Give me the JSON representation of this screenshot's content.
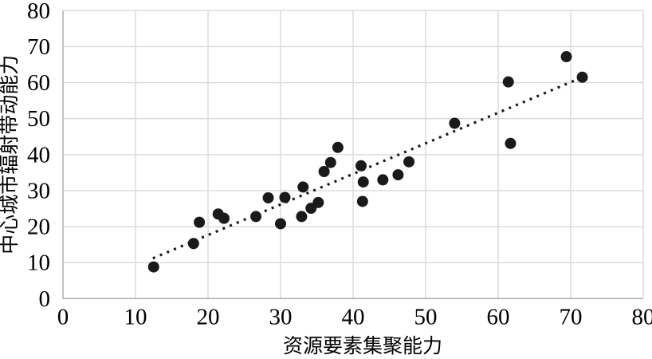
{
  "page": {
    "background_color": "#ffffff"
  },
  "chart_data": {
    "type": "scatter",
    "xlabel": "资源要素集聚能力",
    "ylabel": "中心城市辐射带动能力",
    "xlim": [
      0,
      80
    ],
    "ylim": [
      0,
      80
    ],
    "xticks": [
      0,
      10,
      20,
      30,
      40,
      50,
      60,
      70,
      80
    ],
    "yticks": [
      0,
      10,
      20,
      30,
      40,
      50,
      60,
      70,
      80
    ],
    "grid": true,
    "legend": "none",
    "gridline_color": "#d9d9d9",
    "axis_line_color": "#a6a6a6",
    "text_color": "#000000",
    "marker": {
      "shape": "circle",
      "color": "#1a1a1a",
      "radius_px": 7
    },
    "points": [
      [
        12.5,
        8.8
      ],
      [
        18.0,
        15.3
      ],
      [
        18.8,
        21.2
      ],
      [
        21.4,
        23.5
      ],
      [
        22.2,
        22.3
      ],
      [
        26.6,
        22.8
      ],
      [
        28.3,
        28.0
      ],
      [
        30.0,
        20.8
      ],
      [
        30.6,
        28.1
      ],
      [
        32.9,
        22.8
      ],
      [
        33.1,
        31.0
      ],
      [
        34.2,
        25.1
      ],
      [
        35.2,
        26.7
      ],
      [
        36.0,
        35.3
      ],
      [
        36.9,
        37.8
      ],
      [
        37.9,
        42.0
      ],
      [
        41.1,
        36.9
      ],
      [
        41.4,
        32.4
      ],
      [
        41.3,
        27.0
      ],
      [
        44.1,
        33.0
      ],
      [
        46.2,
        34.4
      ],
      [
        47.7,
        38.0
      ],
      [
        54.0,
        48.7
      ],
      [
        61.4,
        60.2
      ],
      [
        61.7,
        43.1
      ],
      [
        69.4,
        67.2
      ],
      [
        71.6,
        61.5
      ]
    ],
    "trendline": {
      "style": "dotted",
      "color": "#1a1a1a",
      "x1": 12.4,
      "y1": 11.2,
      "x2": 70.8,
      "y2": 60.8
    }
  }
}
